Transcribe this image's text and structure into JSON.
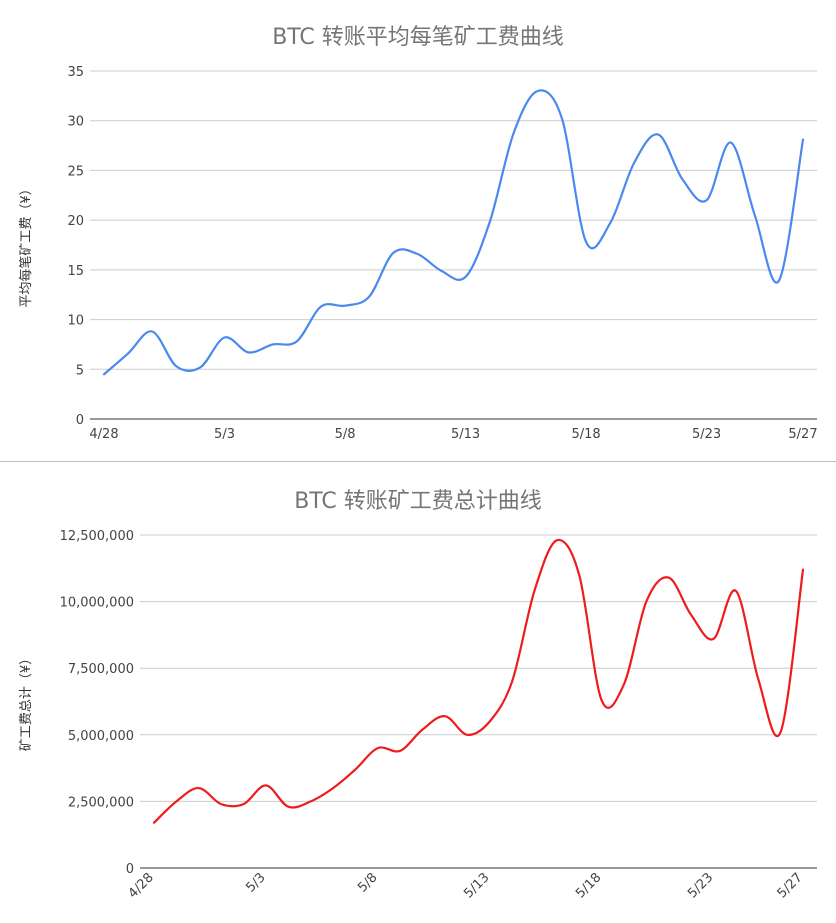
{
  "chart_data": [
    {
      "type": "line",
      "title": "BTC 转账平均每笔矿工费曲线",
      "ylabel": "平均每笔矿工费（¥）",
      "xlabel": "",
      "x": [
        "4/28",
        "4/29",
        "4/30",
        "5/1",
        "5/2",
        "5/3",
        "5/4",
        "5/5",
        "5/6",
        "5/7",
        "5/8",
        "5/9",
        "5/10",
        "5/11",
        "5/12",
        "5/13",
        "5/14",
        "5/15",
        "5/16",
        "5/17",
        "5/18",
        "5/19",
        "5/20",
        "5/21",
        "5/22",
        "5/23",
        "5/24",
        "5/25",
        "5/26",
        "5/27"
      ],
      "x_tick_labels": [
        "4/28",
        "5/3",
        "5/8",
        "5/13",
        "5/18",
        "5/23",
        "5/27"
      ],
      "y_tick_labels": [
        "0",
        "5",
        "10",
        "15",
        "20",
        "25",
        "30",
        "35"
      ],
      "ylim": [
        0,
        35
      ],
      "grid": true,
      "legend": "none",
      "series": [
        {
          "color": "#4a89f0",
          "values": [
            4.5,
            6.6,
            8.8,
            5.3,
            5.2,
            8.2,
            6.7,
            7.5,
            7.8,
            11.3,
            11.4,
            12.3,
            16.7,
            16.6,
            14.9,
            14.3,
            19.8,
            28.8,
            33.0,
            30.2,
            17.8,
            19.7,
            25.8,
            28.6,
            24.1,
            22.0,
            27.8,
            20.5,
            13.9,
            28.1
          ]
        }
      ]
    },
    {
      "type": "line",
      "title": "BTC 转账矿工费总计曲线",
      "ylabel": "矿工费总计（¥）",
      "xlabel": "",
      "x": [
        "4/28",
        "4/29",
        "4/30",
        "5/1",
        "5/2",
        "5/3",
        "5/4",
        "5/5",
        "5/6",
        "5/7",
        "5/8",
        "5/9",
        "5/10",
        "5/11",
        "5/12",
        "5/13",
        "5/14",
        "5/15",
        "5/16",
        "5/17",
        "5/18",
        "5/19",
        "5/20",
        "5/21",
        "5/22",
        "5/23",
        "5/24",
        "5/25",
        "5/26",
        "5/27"
      ],
      "x_tick_labels": [
        "4/28",
        "5/3",
        "5/8",
        "5/13",
        "5/18",
        "5/23",
        "5/27"
      ],
      "y_tick_labels": [
        "0",
        "2,500,000",
        "5,000,000",
        "7,500,000",
        "10,000,000",
        "12,500,000"
      ],
      "ylim": [
        0,
        12500000
      ],
      "grid": true,
      "legend": "none",
      "series": [
        {
          "color": "#ee1c1c",
          "values": [
            1700000,
            2500000,
            3000000,
            2400000,
            2400000,
            3100000,
            2300000,
            2500000,
            3000000,
            3700000,
            4500000,
            4400000,
            5200000,
            5700000,
            5000000,
            5500000,
            7000000,
            10400000,
            12300000,
            11000000,
            6300000,
            6900000,
            10000000,
            10900000,
            9500000,
            8600000,
            10400000,
            7100000,
            5100000,
            11200000
          ]
        }
      ]
    }
  ]
}
